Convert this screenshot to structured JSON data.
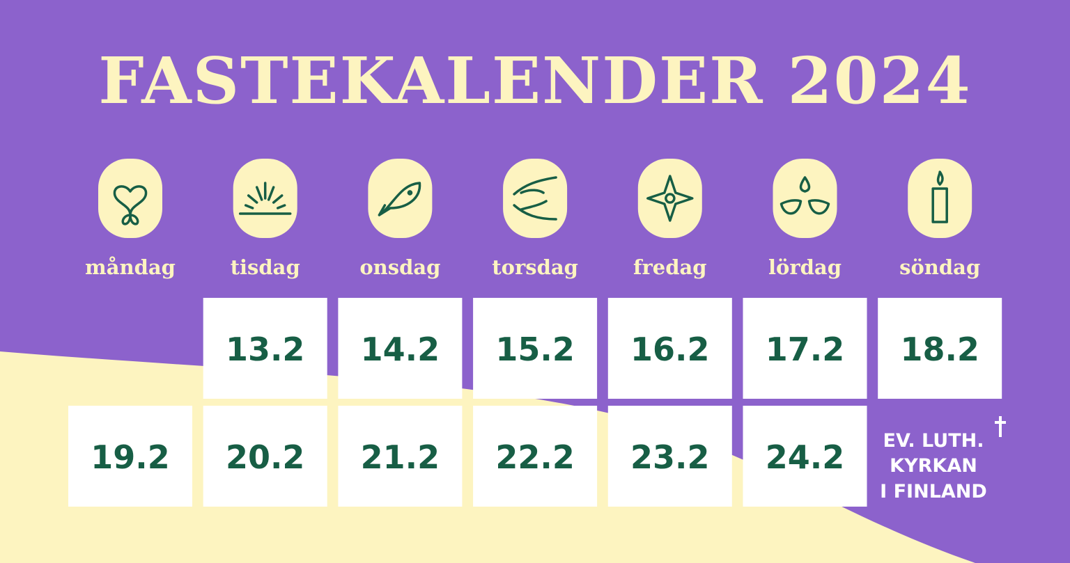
{
  "title": "FASTEKALENDER 2024",
  "days": [
    "måndag",
    "tisdag",
    "onsdag",
    "torsdag",
    "fredag",
    "lördag",
    "söndag"
  ],
  "dates": [
    "13.2",
    "14.2",
    "15.2",
    "16.2",
    "17.2",
    "18.2",
    "19.2",
    "20.2",
    "21.2",
    "22.2",
    "23.2",
    "24.2"
  ],
  "logo": [
    "EV. LUTH.",
    "KYRKAN",
    "I FINLAND"
  ]
}
